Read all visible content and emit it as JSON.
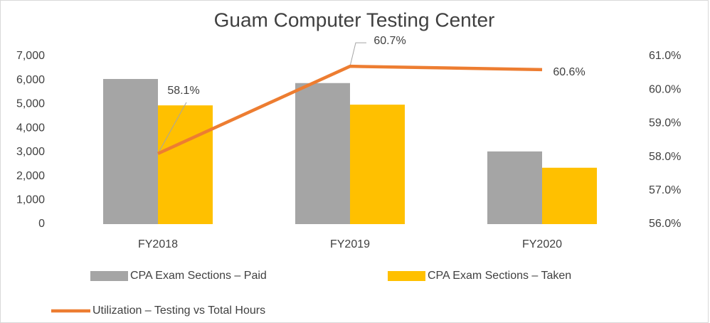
{
  "chart_data": {
    "type": "combo",
    "title": "Guam Computer Testing Center",
    "categories": [
      "FY2018",
      "FY2019",
      "FY2020"
    ],
    "series": [
      {
        "name": "CPA Exam Sections – Paid",
        "type": "bar",
        "color": "#a5a5a5",
        "values": [
          6050,
          5880,
          3030
        ]
      },
      {
        "name": "CPA Exam Sections – Taken",
        "type": "bar",
        "color": "#ffc000",
        "values": [
          4950,
          4980,
          2350
        ]
      },
      {
        "name": "Utilization – Testing vs Total Hours",
        "type": "line",
        "axis": "y2",
        "color": "#ed7d31",
        "values": [
          58.1,
          60.7,
          60.6
        ],
        "value_labels": [
          "58.1%",
          "60.7%",
          "60.6%"
        ]
      }
    ],
    "ylim": [
      0,
      7000
    ],
    "yticks": [
      0,
      {
        "value": 1000,
        "label": "1,000"
      },
      {
        "value": 2000,
        "label": "2,000"
      },
      {
        "value": 3000,
        "label": "3,000"
      },
      {
        "value": 4000,
        "label": "4,000"
      },
      {
        "value": 5000,
        "label": "5,000"
      },
      {
        "value": 6000,
        "label": "6,000"
      },
      {
        "value": 7000,
        "label": "7,000"
      }
    ],
    "y2lim": [
      56,
      61
    ],
    "y2ticks": [
      {
        "value": 56,
        "label": "56.0%"
      },
      {
        "value": 57,
        "label": "57.0%"
      },
      {
        "value": 58,
        "label": "58.0%"
      },
      {
        "value": 59,
        "label": "59.0%"
      },
      {
        "value": 60,
        "label": "60.0%"
      },
      {
        "value": 61,
        "label": "61.0%"
      }
    ],
    "legend": "bottom"
  }
}
